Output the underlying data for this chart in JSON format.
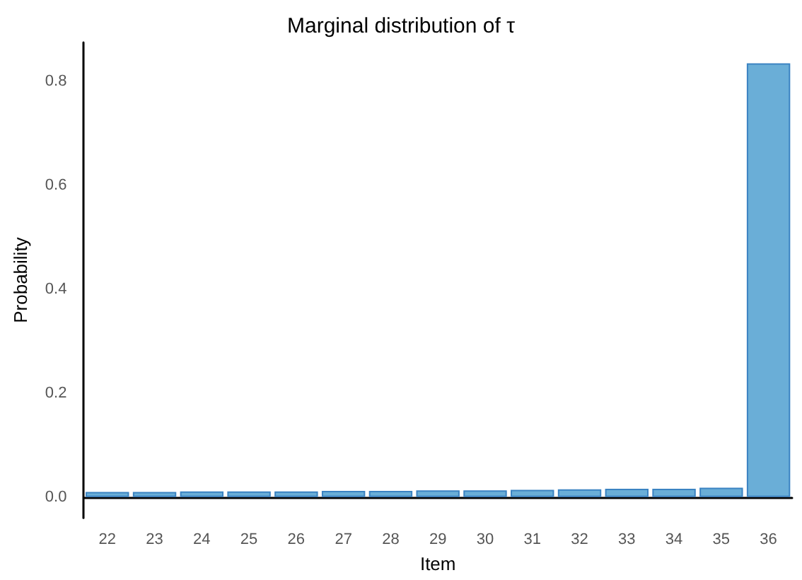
{
  "chart_data": {
    "type": "bar",
    "title": "Marginal distribution of τ",
    "xlabel": "Item",
    "ylabel": "Probability",
    "categories": [
      "22",
      "23",
      "24",
      "25",
      "26",
      "27",
      "28",
      "29",
      "30",
      "31",
      "32",
      "33",
      "34",
      "35",
      "36"
    ],
    "values": [
      0.01,
      0.01,
      0.011,
      0.011,
      0.011,
      0.012,
      0.012,
      0.013,
      0.013,
      0.014,
      0.015,
      0.016,
      0.016,
      0.018,
      0.835
    ],
    "color": "#6aaed7",
    "ylim": [
      -0.04,
      0.875
    ],
    "yticks": [
      {
        "value": 0,
        "label": "0.0"
      },
      0.2,
      0.4,
      0.6,
      0.8
    ],
    "grid": false
  }
}
